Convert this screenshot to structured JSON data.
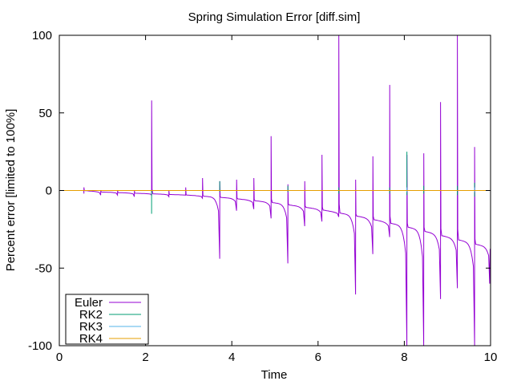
{
  "chart_data": {
    "type": "line",
    "title": "Spring Simulation Error [diff.sim]",
    "xlabel": "Time",
    "ylabel": "Percent error [limited to 100%]",
    "xlim": [
      0,
      10
    ],
    "ylim": [
      -100,
      100
    ],
    "xticks": [
      "0",
      "2",
      "4",
      "6",
      "8",
      "10"
    ],
    "yticks": [
      "-100",
      "-50",
      "0",
      "50",
      "100"
    ],
    "grid": false,
    "legend_position": "bottom-left",
    "series": [
      {
        "name": "Euler",
        "color": "#9400d3",
        "baseline_start": 0.55,
        "baseline": [
          [
            0.55,
            0
          ],
          [
            1.0,
            -1
          ],
          [
            2.0,
            -2
          ],
          [
            3.0,
            -3
          ],
          [
            4.0,
            -5
          ],
          [
            5.0,
            -8
          ],
          [
            6.0,
            -12
          ],
          [
            7.0,
            -17
          ],
          [
            8.0,
            -23
          ],
          [
            9.0,
            -30
          ],
          [
            10.0,
            -37
          ]
        ],
        "spikes": [
          {
            "t": 0.57,
            "lo": -2,
            "hi": 2
          },
          {
            "t": 0.96,
            "lo": -3,
            "hi": 0
          },
          {
            "t": 1.35,
            "lo": -3,
            "hi": 0
          },
          {
            "t": 1.74,
            "lo": -4,
            "hi": 0
          },
          {
            "t": 2.14,
            "lo": -3,
            "hi": 58
          },
          {
            "t": 2.54,
            "lo": -4,
            "hi": 0
          },
          {
            "t": 2.93,
            "lo": -3,
            "hi": 2
          },
          {
            "t": 3.32,
            "lo": -5,
            "hi": 8
          },
          {
            "t": 3.72,
            "lo": -44,
            "hi": 6
          },
          {
            "t": 4.11,
            "lo": -13,
            "hi": 7
          },
          {
            "t": 4.51,
            "lo": -12,
            "hi": 8
          },
          {
            "t": 4.91,
            "lo": -18,
            "hi": 35
          },
          {
            "t": 5.3,
            "lo": -47,
            "hi": 4
          },
          {
            "t": 5.69,
            "lo": -23,
            "hi": 6
          },
          {
            "t": 6.09,
            "lo": -20,
            "hi": 23
          },
          {
            "t": 6.48,
            "lo": -17,
            "hi": 100
          },
          {
            "t": 6.87,
            "lo": -67,
            "hi": 7
          },
          {
            "t": 7.27,
            "lo": -41,
            "hi": 22
          },
          {
            "t": 7.66,
            "lo": -30,
            "hi": 68
          },
          {
            "t": 8.06,
            "lo": -100,
            "hi": 23
          },
          {
            "t": 8.45,
            "lo": -100,
            "hi": 24
          },
          {
            "t": 8.84,
            "lo": -70,
            "hi": 57
          },
          {
            "t": 9.23,
            "lo": -63,
            "hi": 100
          },
          {
            "t": 9.63,
            "lo": -100,
            "hi": 28
          },
          {
            "t": 9.98,
            "lo": -60,
            "hi": -50
          }
        ]
      },
      {
        "name": "RK2",
        "color": "#009e73",
        "spikes": [
          {
            "t": 2.14,
            "lo": -15,
            "hi": 0
          },
          {
            "t": 3.72,
            "lo": -1,
            "hi": 6
          },
          {
            "t": 5.3,
            "lo": -1,
            "hi": 3
          },
          {
            "t": 6.48,
            "lo": -2,
            "hi": 2
          },
          {
            "t": 7.66,
            "lo": -2,
            "hi": 2
          },
          {
            "t": 8.06,
            "lo": -3,
            "hi": 25
          },
          {
            "t": 8.45,
            "lo": -2,
            "hi": 3
          },
          {
            "t": 9.23,
            "lo": -3,
            "hi": 3
          },
          {
            "t": 9.63,
            "lo": -4,
            "hi": 5
          }
        ]
      },
      {
        "name": "RK3",
        "color": "#56b4e9",
        "spikes": [
          {
            "t": 8.06,
            "lo": -1,
            "hi": 2
          },
          {
            "t": 9.63,
            "lo": -1,
            "hi": 2
          }
        ]
      },
      {
        "name": "RK4",
        "color": "#e69f00",
        "x": [
          0,
          10
        ],
        "y": [
          0,
          0
        ]
      }
    ]
  }
}
